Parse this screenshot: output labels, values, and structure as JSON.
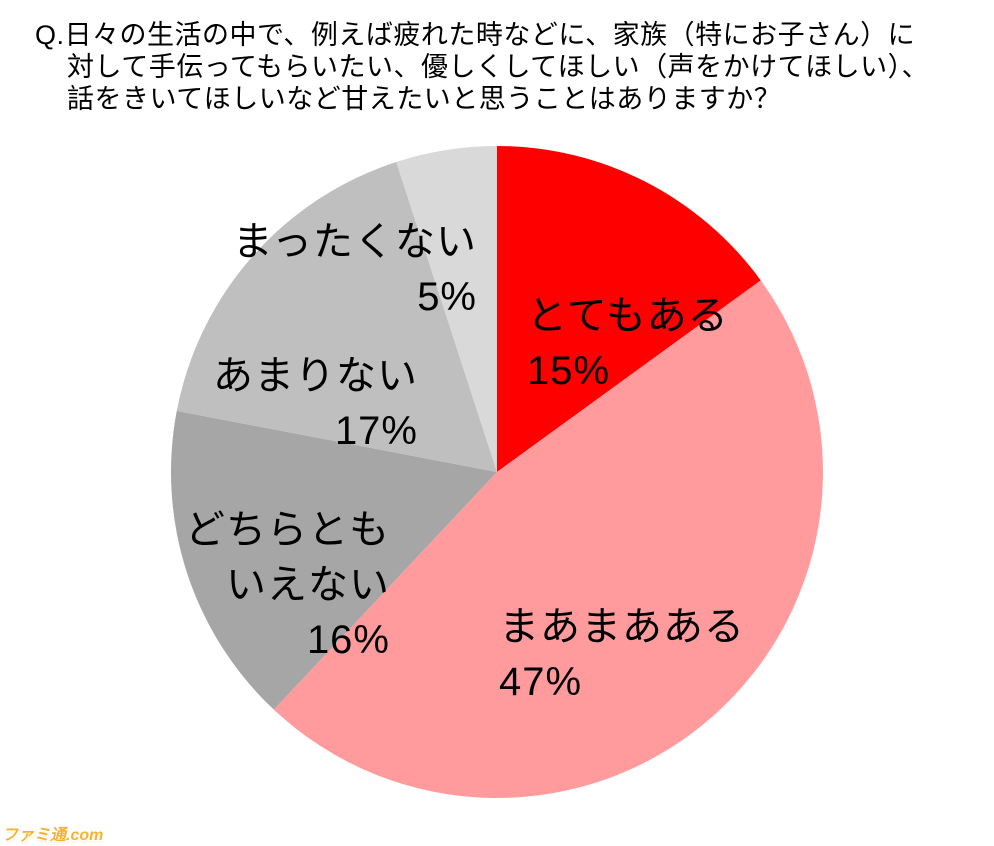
{
  "title": {
    "line1": "Q.日々の生活の中で、例えば疲れた時などに、家族（特にお子さん）に",
    "line2": "対して手伝ってもらいたい、優しくしてほしい（声をかけてほしい）、",
    "line3": "話をきいてほしいなど甘えたいと思うことはありますか？"
  },
  "watermark": "ファミ通.com",
  "chart_data": {
    "type": "pie",
    "title": "Q.日々の生活の中で、例えば疲れた時などに、家族（特にお子さん）に対して手伝ってもらいたい、優しくしてほしい（声をかけてほしい）、話をきいてほしいなど甘えたいと思うことはありますか？",
    "unit": "%",
    "start_angle_deg": 0,
    "direction": "clockwise",
    "legend": "none",
    "label_style": "category name and percent printed next to each slice",
    "slices": [
      {
        "key": "very-much",
        "label": "とてもある",
        "value": 15,
        "color": "#fe0000"
      },
      {
        "key": "somewhat",
        "label": "まあまあある",
        "value": 47,
        "color": "#ff9b9d"
      },
      {
        "key": "neither",
        "label": "どちらともいえない",
        "value": 16,
        "color": "#a6a6a6"
      },
      {
        "key": "not-much",
        "label": "あまりない",
        "value": 17,
        "color": "#bfbfbf"
      },
      {
        "key": "not-at-all",
        "label": "まったくない",
        "value": 5,
        "color": "#d9d9d9"
      }
    ]
  },
  "labels": {
    "very_much": {
      "name": "とてもある",
      "pct": "15%"
    },
    "somewhat": {
      "name": "まあまあある",
      "pct": "47%"
    },
    "neither": {
      "name": "どちらとも\nいえない",
      "pct": "16%"
    },
    "not_much": {
      "name": "あまりない",
      "pct": "17%"
    },
    "not_at_all": {
      "name": "まったくない",
      "pct": "5%"
    }
  }
}
